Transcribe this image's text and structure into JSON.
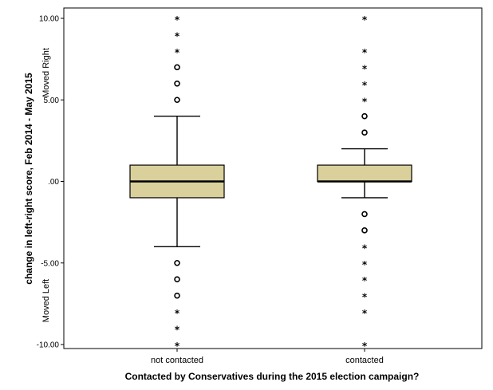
{
  "chart_data": {
    "type": "boxplot",
    "xlabel": "Contacted by Conservatives during the 2015 election campaign?",
    "ylabel": "change in left-right score, Feb 2014 - May 2015",
    "ylim": [
      -10,
      10
    ],
    "y_ticks": [
      {
        "value": 10,
        "label": "10.00"
      },
      {
        "value": 5,
        "label": "5.00"
      },
      {
        "value": 0,
        "label": ".00"
      },
      {
        "value": -5,
        "label": "-5.00"
      },
      {
        "value": -10,
        "label": "-10.00"
      }
    ],
    "annotations": {
      "top": "Moved Right",
      "bottom": "Moved Left"
    },
    "box_color": "#d9d09c",
    "grid": false,
    "categories": [
      "not contacted",
      "contacted"
    ],
    "boxes": [
      {
        "category": "not contacted",
        "whisker_low": -4,
        "q1": -1,
        "median": 0,
        "q3": 1,
        "whisker_high": 4,
        "outliers": [
          5,
          6,
          7,
          -5,
          -6,
          -7
        ],
        "extremes": [
          8,
          9,
          10,
          -8,
          -9,
          -10
        ]
      },
      {
        "category": "contacted",
        "whisker_low": -1,
        "q1": 0,
        "median": 0,
        "q3": 1,
        "whisker_high": 2,
        "outliers": [
          3,
          4,
          -2,
          -3
        ],
        "extremes": [
          5,
          6,
          7,
          8,
          10,
          -4,
          -5,
          -6,
          -7,
          -8,
          -10
        ]
      }
    ]
  }
}
